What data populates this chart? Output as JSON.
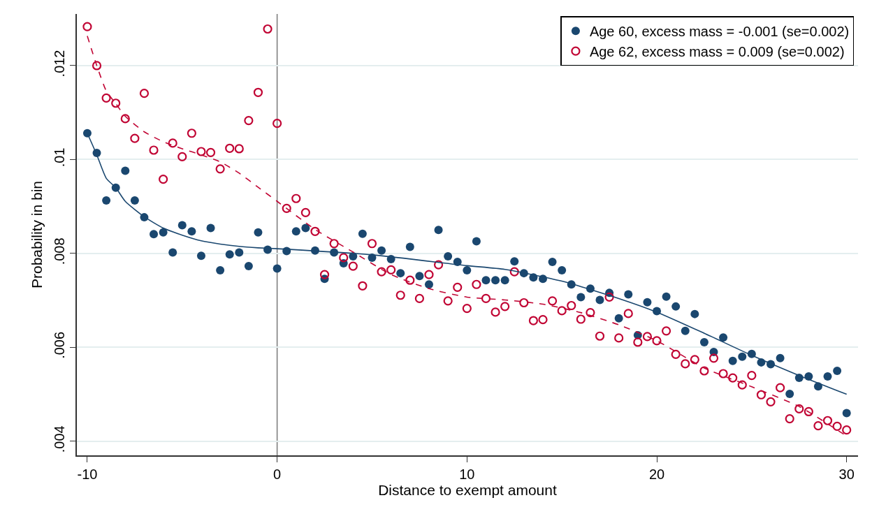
{
  "chart_data": {
    "type": "scatter",
    "xlabel": "Distance to exempt amount",
    "ylabel": "Probability in bin",
    "x": [
      -10,
      -9.5,
      -9,
      -8.5,
      -8,
      -7.5,
      -7,
      -6.5,
      -6,
      -5.5,
      -5,
      -4.5,
      -4,
      -3.5,
      -3,
      -2.5,
      -2,
      -1.5,
      -1,
      -0.5,
      0,
      0.5,
      1,
      1.5,
      2,
      2.5,
      3,
      3.5,
      4,
      4.5,
      5,
      5.5,
      6,
      6.5,
      7,
      7.5,
      8,
      8.5,
      9,
      9.5,
      10,
      10.5,
      11,
      11.5,
      12,
      12.5,
      13,
      13.5,
      14,
      14.5,
      15,
      15.5,
      16,
      16.5,
      17,
      17.5,
      18,
      18.5,
      19,
      19.5,
      20,
      20.5,
      21,
      21.5,
      22,
      22.5,
      23,
      23.5,
      24,
      24.5,
      25,
      25.5,
      26,
      26.5,
      27,
      27.5,
      28,
      28.5,
      29,
      29.5,
      30
    ],
    "series": [
      {
        "name": "Age 60, excess mass = -0.001 (se=0.002)",
        "color": "#1a476f",
        "marker": "circle",
        "values": [
          0.01056,
          0.01014,
          0.00913,
          0.0094,
          0.00976,
          0.00913,
          0.00877,
          0.00841,
          0.00845,
          0.00802,
          0.0086,
          0.00847,
          0.00795,
          0.00854,
          0.00764,
          0.00798,
          0.00802,
          0.00773,
          0.00845,
          0.00808,
          0.00768,
          0.00805,
          0.00847,
          0.00854,
          0.00806,
          0.00746,
          0.00802,
          0.00779,
          0.00794,
          0.00842,
          0.00791,
          0.00806,
          0.00788,
          0.00758,
          0.00814,
          0.00752,
          0.00734,
          0.0085,
          0.00794,
          0.00782,
          0.00764,
          0.00826,
          0.00743,
          0.00743,
          0.00743,
          0.00783,
          0.00758,
          0.00749,
          0.00746,
          0.00782,
          0.00764,
          0.00734,
          0.00707,
          0.00725,
          0.00701,
          0.00716,
          0.00662,
          0.00713,
          0.00626,
          0.00696,
          0.00677,
          0.00708,
          0.00687,
          0.00635,
          0.00671,
          0.00611,
          0.0059,
          0.00621,
          0.00571,
          0.0058,
          0.00586,
          0.00568,
          0.00564,
          0.00577,
          0.00501,
          0.00535,
          0.00538,
          0.00517,
          0.00538,
          0.0055,
          0.0046
        ]
      },
      {
        "name": "Age 62, excess mass = 0.009 (se=0.002)",
        "color": "#c10534",
        "marker": "circle-open",
        "values": [
          0.01283,
          0.012,
          0.01131,
          0.0112,
          0.01087,
          0.01045,
          0.01141,
          0.0102,
          0.00958,
          0.01035,
          0.01006,
          0.01056,
          0.01017,
          0.01015,
          0.0098,
          0.01024,
          0.01023,
          0.01083,
          0.01143,
          0.01278,
          0.01077,
          0.00896,
          0.00917,
          0.00887,
          0.00847,
          0.00755,
          0.00821,
          0.00791,
          0.00773,
          0.00731,
          0.00821,
          0.00761,
          0.00765,
          0.00711,
          0.00743,
          0.00704,
          0.00755,
          0.00776,
          0.00699,
          0.00728,
          0.00683,
          0.00734,
          0.00704,
          0.00675,
          0.00687,
          0.00761,
          0.00695,
          0.00657,
          0.00659,
          0.00699,
          0.00678,
          0.00689,
          0.0066,
          0.00674,
          0.00624,
          0.00707,
          0.0062,
          0.00672,
          0.00611,
          0.00623,
          0.00614,
          0.00635,
          0.00585,
          0.00565,
          0.00574,
          0.0055,
          0.00577,
          0.00544,
          0.00535,
          0.0052,
          0.0054,
          0.00499,
          0.00484,
          0.00514,
          0.00448,
          0.00469,
          0.00463,
          0.00433,
          0.00444,
          0.00432,
          0.00424
        ]
      },
      {
        "type": "line",
        "color": "#1a476f",
        "marker": "none",
        "line_style": "solid",
        "x": [
          -10,
          -9.5,
          -9,
          -8.5,
          -8,
          -7,
          -6,
          -5,
          -4,
          -3,
          -2,
          -1,
          0,
          5,
          10,
          12,
          15,
          18,
          20,
          22.5,
          25,
          27.5,
          30
        ],
        "values": [
          0.01056,
          0.0101,
          0.0096,
          0.0094,
          0.00911,
          0.00878,
          0.00854,
          0.00839,
          0.00827,
          0.0082,
          0.00815,
          0.00812,
          0.0081,
          0.00797,
          0.00774,
          0.00766,
          0.00741,
          0.00704,
          0.00675,
          0.0063,
          0.00583,
          0.0054,
          0.005
        ]
      },
      {
        "type": "line",
        "color": "#c10534",
        "marker": "none",
        "line_style": "dashed",
        "x": [
          -10,
          -9.5,
          -9,
          -8.5,
          -8,
          -7,
          -6,
          -5,
          -4,
          -3,
          -2,
          -1,
          0,
          2,
          4,
          6,
          8,
          10,
          12,
          14,
          16,
          18,
          20,
          22.5,
          25,
          27.5,
          30
        ],
        "values": [
          0.01263,
          0.012,
          0.01146,
          0.01119,
          0.01092,
          0.01059,
          0.01038,
          0.01023,
          0.0101,
          0.00995,
          0.00971,
          0.00941,
          0.00911,
          0.00851,
          0.00803,
          0.00755,
          0.00725,
          0.00707,
          0.00701,
          0.00692,
          0.00674,
          0.00648,
          0.00614,
          0.00556,
          0.00516,
          0.00474,
          0.00411
        ]
      }
    ],
    "xlim": [
      -10.55,
      30.6
    ],
    "xticks": [
      -10,
      0,
      10,
      20,
      30
    ],
    "ylim": [
      0.0037,
      0.0131
    ],
    "yticks": [
      {
        "value": 0.004,
        "label": ".004"
      },
      {
        "value": 0.006,
        "label": ".006"
      },
      {
        "value": 0.008,
        "label": ".008"
      },
      {
        "value": 0.01,
        "label": ".01"
      },
      {
        "value": 0.012,
        "label": ".012"
      }
    ],
    "ref_lines": [
      {
        "axis": "x",
        "value": 0,
        "color": "#7f7f7f"
      }
    ],
    "grid": "y",
    "legend": "top right"
  }
}
